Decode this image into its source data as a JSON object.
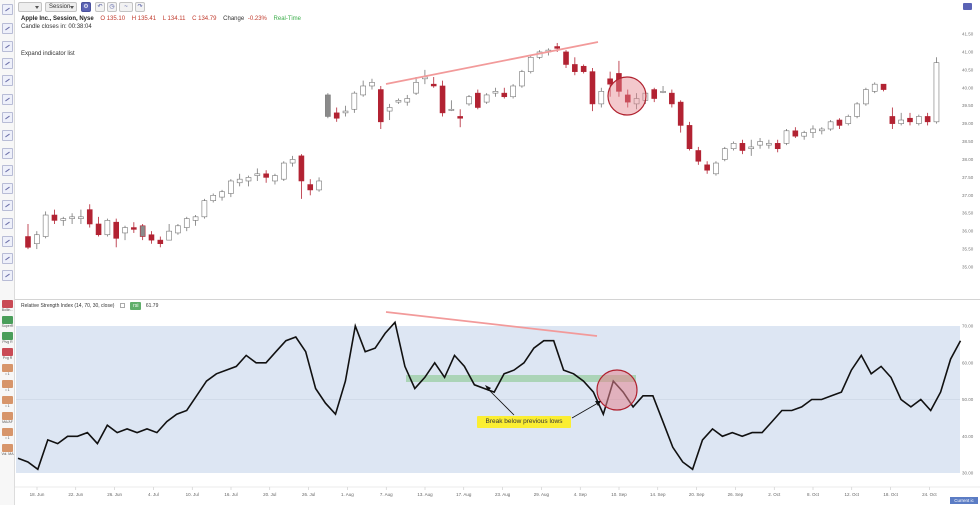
{
  "toolbar": {
    "interval_label": "",
    "session_label": "Session",
    "icons": [
      "gear-icon",
      "undo-icon",
      "clock-icon",
      "line-icon",
      "redo-icon"
    ]
  },
  "header": {
    "symbol": "Apple Inc., Session, Nyse",
    "open": "O 135.10",
    "high": "H 135.41",
    "low": "L 134.11",
    "close": "C 134.79",
    "change_label": "Change",
    "change_value": "-0.23%",
    "realtime": "Real-Time",
    "candle_timer": "Candle closes in: 00:38:04",
    "expand_indicator": "Expand indicator list"
  },
  "left_indicators": [
    {
      "label": "Bollin...",
      "color": "#c94a55"
    },
    {
      "label": "SuperR",
      "color": "#4a9e5a"
    },
    {
      "label": "Pivg R",
      "color": "#4a9e5a"
    },
    {
      "label": "Pvg R",
      "color": "#c94a55"
    },
    {
      "label": "• 1",
      "color": "#d7956a"
    },
    {
      "label": "• 1",
      "color": "#d7956a"
    },
    {
      "label": "• 1",
      "color": "#d7956a"
    },
    {
      "label": "MA/AF",
      "color": "#d7956a"
    },
    {
      "label": "• 1",
      "color": "#d7956a"
    },
    {
      "label": "Vol. MA",
      "color": "#d7956a"
    }
  ],
  "price_axis": [
    "41.50",
    "41.00",
    "40.50",
    "40.00",
    "39.50",
    "39.00",
    "38.50",
    "38.00",
    "37.50",
    "37.00",
    "36.50",
    "36.00",
    "35.50",
    "35.00"
  ],
  "date_axis": [
    "18. Jun",
    "22. Jun",
    "26. Jun",
    "4. Jul",
    "10. Jul",
    "16. Jul",
    "20. Jul",
    "26. Jul",
    "1. Aug",
    "7. Aug",
    "13. Aug",
    "17. Aug",
    "23. Aug",
    "29. Aug",
    "4. Sep",
    "10. Sep",
    "14. Sep",
    "20. Sep",
    "26. Sep",
    "2. Oct",
    "8. Oct",
    "12. Oct",
    "18. Oct",
    "24. Oct"
  ],
  "current_date_tag": "Current ic",
  "candles": [
    {
      "o": 35.85,
      "h": 36.2,
      "l": 35.5,
      "c": 35.55
    },
    {
      "o": 35.65,
      "h": 36.0,
      "l": 35.5,
      "c": 35.9
    },
    {
      "o": 35.85,
      "h": 36.55,
      "l": 35.8,
      "c": 36.45
    },
    {
      "o": 36.45,
      "h": 36.6,
      "l": 36.2,
      "c": 36.3
    },
    {
      "o": 36.3,
      "h": 36.4,
      "l": 36.15,
      "c": 36.35
    },
    {
      "o": 36.35,
      "h": 36.5,
      "l": 36.2,
      "c": 36.4
    },
    {
      "o": 36.35,
      "h": 36.6,
      "l": 36.2,
      "c": 36.4
    },
    {
      "o": 36.6,
      "h": 36.75,
      "l": 36.1,
      "c": 36.2
    },
    {
      "o": 36.2,
      "h": 36.4,
      "l": 35.85,
      "c": 35.9
    },
    {
      "o": 35.9,
      "h": 36.35,
      "l": 35.85,
      "c": 36.3
    },
    {
      "o": 36.25,
      "h": 36.35,
      "l": 35.55,
      "c": 35.8
    },
    {
      "o": 35.95,
      "h": 36.15,
      "l": 35.75,
      "c": 36.1
    },
    {
      "o": 36.1,
      "h": 36.25,
      "l": 35.95,
      "c": 36.05
    },
    {
      "o": 36.15,
      "h": 36.2,
      "l": 35.75,
      "c": 35.85
    },
    {
      "o": 35.9,
      "h": 36.0,
      "l": 35.65,
      "c": 35.75
    },
    {
      "o": 35.75,
      "h": 35.85,
      "l": 35.55,
      "c": 35.65
    },
    {
      "o": 35.75,
      "h": 36.2,
      "l": 35.75,
      "c": 36.0
    },
    {
      "o": 35.95,
      "h": 36.2,
      "l": 35.9,
      "c": 36.15
    },
    {
      "o": 36.1,
      "h": 36.4,
      "l": 36.0,
      "c": 36.35
    },
    {
      "o": 36.3,
      "h": 36.45,
      "l": 36.15,
      "c": 36.4
    },
    {
      "o": 36.4,
      "h": 36.9,
      "l": 36.35,
      "c": 36.85
    },
    {
      "o": 36.85,
      "h": 37.05,
      "l": 36.8,
      "c": 37.0
    },
    {
      "o": 36.95,
      "h": 37.15,
      "l": 36.85,
      "c": 37.1
    },
    {
      "o": 37.05,
      "h": 37.45,
      "l": 36.95,
      "c": 37.4
    },
    {
      "o": 37.35,
      "h": 37.6,
      "l": 37.25,
      "c": 37.45
    },
    {
      "o": 37.4,
      "h": 37.55,
      "l": 37.25,
      "c": 37.5
    },
    {
      "o": 37.55,
      "h": 37.75,
      "l": 37.4,
      "c": 37.6
    },
    {
      "o": 37.6,
      "h": 37.7,
      "l": 37.35,
      "c": 37.5
    },
    {
      "o": 37.4,
      "h": 37.6,
      "l": 37.3,
      "c": 37.55
    },
    {
      "o": 37.45,
      "h": 37.95,
      "l": 37.4,
      "c": 37.9
    },
    {
      "o": 37.9,
      "h": 38.1,
      "l": 37.8,
      "c": 38.0
    },
    {
      "o": 38.1,
      "h": 38.15,
      "l": 36.9,
      "c": 37.4
    },
    {
      "o": 37.3,
      "h": 37.45,
      "l": 37.0,
      "c": 37.15
    },
    {
      "o": 37.15,
      "h": 37.5,
      "l": 37.1,
      "c": 37.4
    },
    {
      "o": 39.2,
      "h": 39.85,
      "l": 39.15,
      "c": 39.8
    },
    {
      "o": 39.3,
      "h": 39.45,
      "l": 39.05,
      "c": 39.15
    },
    {
      "o": 39.3,
      "h": 39.5,
      "l": 39.2,
      "c": 39.35
    },
    {
      "o": 39.4,
      "h": 39.9,
      "l": 39.3,
      "c": 39.85
    },
    {
      "o": 39.8,
      "h": 40.2,
      "l": 39.75,
      "c": 40.05
    },
    {
      "o": 40.05,
      "h": 40.25,
      "l": 39.95,
      "c": 40.15
    },
    {
      "o": 39.95,
      "h": 40.05,
      "l": 38.85,
      "c": 39.05
    },
    {
      "o": 39.35,
      "h": 39.55,
      "l": 39.1,
      "c": 39.45
    },
    {
      "o": 39.6,
      "h": 39.7,
      "l": 39.55,
      "c": 39.65
    },
    {
      "o": 39.6,
      "h": 39.8,
      "l": 39.5,
      "c": 39.7
    },
    {
      "o": 39.85,
      "h": 40.3,
      "l": 39.8,
      "c": 40.15
    },
    {
      "o": 40.25,
      "h": 40.5,
      "l": 40.1,
      "c": 40.3
    },
    {
      "o": 40.1,
      "h": 40.3,
      "l": 40.0,
      "c": 40.05
    },
    {
      "o": 40.05,
      "h": 40.2,
      "l": 39.2,
      "c": 39.3
    },
    {
      "o": 39.4,
      "h": 39.65,
      "l": 39.35,
      "c": 39.4
    },
    {
      "o": 39.2,
      "h": 39.4,
      "l": 38.9,
      "c": 39.15
    },
    {
      "o": 39.55,
      "h": 39.8,
      "l": 39.5,
      "c": 39.75
    },
    {
      "o": 39.85,
      "h": 39.95,
      "l": 39.4,
      "c": 39.45
    },
    {
      "o": 39.6,
      "h": 39.85,
      "l": 39.55,
      "c": 39.8
    },
    {
      "o": 39.85,
      "h": 40.0,
      "l": 39.75,
      "c": 39.9
    },
    {
      "o": 39.85,
      "h": 40.0,
      "l": 39.7,
      "c": 39.75
    },
    {
      "o": 39.75,
      "h": 40.1,
      "l": 39.7,
      "c": 40.05
    },
    {
      "o": 40.05,
      "h": 40.5,
      "l": 40.0,
      "c": 40.45
    },
    {
      "o": 40.45,
      "h": 40.9,
      "l": 40.4,
      "c": 40.85
    },
    {
      "o": 40.85,
      "h": 41.05,
      "l": 40.8,
      "c": 41.0
    },
    {
      "o": 41.0,
      "h": 41.1,
      "l": 40.9,
      "c": 41.05
    },
    {
      "o": 41.15,
      "h": 41.25,
      "l": 41.0,
      "c": 41.1
    },
    {
      "o": 41.0,
      "h": 41.05,
      "l": 40.55,
      "c": 40.65
    },
    {
      "o": 40.65,
      "h": 40.85,
      "l": 40.35,
      "c": 40.45
    },
    {
      "o": 40.6,
      "h": 40.65,
      "l": 40.4,
      "c": 40.45
    },
    {
      "o": 40.45,
      "h": 40.55,
      "l": 39.35,
      "c": 39.55
    },
    {
      "o": 39.55,
      "h": 40.0,
      "l": 39.45,
      "c": 39.9
    },
    {
      "o": 40.25,
      "h": 40.45,
      "l": 39.75,
      "c": 40.1
    },
    {
      "o": 40.4,
      "h": 40.75,
      "l": 39.75,
      "c": 39.9
    },
    {
      "o": 39.8,
      "h": 39.95,
      "l": 39.45,
      "c": 39.6
    },
    {
      "o": 39.55,
      "h": 39.85,
      "l": 39.4,
      "c": 39.7
    },
    {
      "o": 39.65,
      "h": 39.9,
      "l": 39.55,
      "c": 39.85
    },
    {
      "o": 39.95,
      "h": 40.0,
      "l": 39.6,
      "c": 39.7
    },
    {
      "o": 39.9,
      "h": 40.05,
      "l": 39.85,
      "c": 39.9
    },
    {
      "o": 39.85,
      "h": 39.95,
      "l": 39.45,
      "c": 39.55
    },
    {
      "o": 39.6,
      "h": 39.65,
      "l": 38.75,
      "c": 38.95
    },
    {
      "o": 38.95,
      "h": 39.05,
      "l": 38.25,
      "c": 38.3
    },
    {
      "o": 38.25,
      "h": 38.35,
      "l": 37.85,
      "c": 37.95
    },
    {
      "o": 37.85,
      "h": 37.95,
      "l": 37.6,
      "c": 37.7
    },
    {
      "o": 37.6,
      "h": 37.95,
      "l": 37.55,
      "c": 37.9
    },
    {
      "o": 38.0,
      "h": 38.35,
      "l": 37.95,
      "c": 38.3
    },
    {
      "o": 38.3,
      "h": 38.5,
      "l": 38.25,
      "c": 38.45
    },
    {
      "o": 38.45,
      "h": 38.55,
      "l": 38.15,
      "c": 38.25
    },
    {
      "o": 38.3,
      "h": 38.55,
      "l": 38.1,
      "c": 38.35
    },
    {
      "o": 38.4,
      "h": 38.6,
      "l": 38.3,
      "c": 38.5
    },
    {
      "o": 38.4,
      "h": 38.55,
      "l": 38.3,
      "c": 38.45
    },
    {
      "o": 38.45,
      "h": 38.55,
      "l": 38.2,
      "c": 38.3
    },
    {
      "o": 38.45,
      "h": 38.85,
      "l": 38.4,
      "c": 38.8
    },
    {
      "o": 38.8,
      "h": 38.9,
      "l": 38.6,
      "c": 38.65
    },
    {
      "o": 38.65,
      "h": 38.8,
      "l": 38.55,
      "c": 38.75
    },
    {
      "o": 38.75,
      "h": 38.95,
      "l": 38.6,
      "c": 38.85
    },
    {
      "o": 38.8,
      "h": 38.9,
      "l": 38.7,
      "c": 38.85
    },
    {
      "o": 38.85,
      "h": 39.1,
      "l": 38.8,
      "c": 39.05
    },
    {
      "o": 39.1,
      "h": 39.15,
      "l": 38.85,
      "c": 38.95
    },
    {
      "o": 39.0,
      "h": 39.25,
      "l": 38.95,
      "c": 39.2
    },
    {
      "o": 39.2,
      "h": 39.6,
      "l": 39.15,
      "c": 39.55
    },
    {
      "o": 39.55,
      "h": 40.0,
      "l": 39.5,
      "c": 39.95
    },
    {
      "o": 39.9,
      "h": 40.15,
      "l": 39.85,
      "c": 40.1
    },
    {
      "o": 40.1,
      "h": 40.1,
      "l": 39.9,
      "c": 39.95
    },
    {
      "o": 39.2,
      "h": 39.45,
      "l": 38.85,
      "c": 39.0
    },
    {
      "o": 39.0,
      "h": 39.3,
      "l": 38.95,
      "c": 39.1
    },
    {
      "o": 39.15,
      "h": 39.3,
      "l": 38.95,
      "c": 39.05
    },
    {
      "o": 39.0,
      "h": 39.25,
      "l": 38.95,
      "c": 39.2
    },
    {
      "o": 39.2,
      "h": 39.3,
      "l": 38.95,
      "c": 39.05
    },
    {
      "o": 39.05,
      "h": 40.85,
      "l": 39.0,
      "c": 40.7
    }
  ],
  "rsi": {
    "title": "Relative Strength Index (14, 70, 30, close)",
    "badge": "rsi",
    "value": "61.79",
    "axis": [
      "70.00",
      "60.00",
      "50.00",
      "40.00",
      "30.00"
    ],
    "values": [
      34,
      33,
      31,
      39,
      38,
      40,
      40,
      41,
      38,
      43,
      41,
      42,
      41,
      42,
      41,
      44,
      46,
      47,
      51,
      55,
      57,
      58,
      59,
      62,
      60,
      60,
      63,
      66,
      67,
      63,
      53,
      49,
      46,
      55,
      70,
      63,
      64,
      68,
      71,
      59,
      53,
      56,
      60,
      56,
      62,
      59,
      54,
      53,
      52,
      57,
      58,
      60,
      64,
      66,
      66,
      58,
      57,
      55,
      52,
      46,
      55,
      52,
      48,
      51,
      51,
      44,
      37,
      33,
      31,
      39,
      42,
      40,
      41,
      40,
      41,
      41,
      44,
      47,
      47,
      48,
      50,
      50,
      51,
      52,
      58,
      62,
      57,
      59,
      56,
      50,
      48,
      50,
      47,
      52,
      61,
      66
    ]
  },
  "annotations": {
    "callout_text": "Break below previous lows"
  },
  "colors": {
    "bearish": "#b22232",
    "bullish": "#ffffff",
    "neutral": "#8a8a8a",
    "rsi_band": "#dde6f3",
    "trendline": "#f29a9a",
    "support_zone": "#9fd0a8",
    "circle_fill": "#e4858f",
    "circle_stroke": "#b0222f",
    "callout": "#fbee32"
  }
}
